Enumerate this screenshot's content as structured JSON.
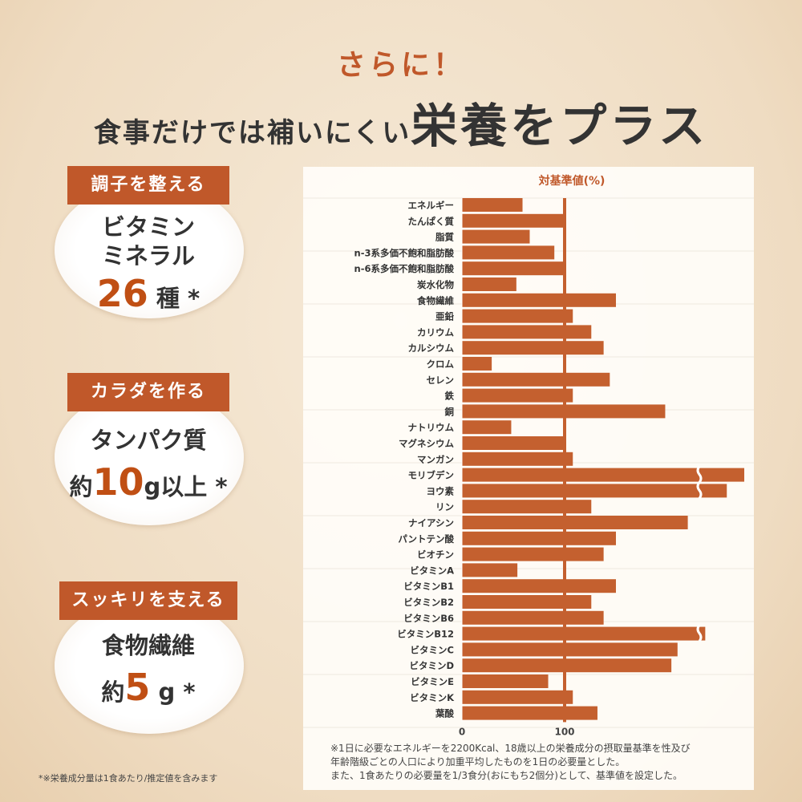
{
  "header": {
    "lead": "さらに！",
    "title_small": "食事だけでは補いにくい",
    "title_big": "栄養をプラス"
  },
  "badges": [
    {
      "tag": "調子を整える",
      "line1": "ビタミン",
      "line2": "ミネラル",
      "number": "26",
      "unit": "種",
      "mark": "*"
    },
    {
      "tag": "カラダを作る",
      "line1": "タンパク質",
      "prefix": "約",
      "number": "10",
      "unit": "g以上",
      "mark": "*"
    },
    {
      "tag": "スッキリを支える",
      "line1": "食物繊維",
      "prefix": "約",
      "number": "5",
      "unit": "g",
      "mark": "*"
    }
  ],
  "footnote": "*※栄養成分量は1食あたり/推定値を含みます",
  "chart_note": [
    "※1日に必要なエネルギーを2200Kcal、18歳以上の栄養成分の摂取量基準を性及び",
    "年齢階級ごとの人口により加重平均したものを1日の必要量とした。",
    "また、1食あたりの必要量を1/3食分(おにもち2個分)として、基準値を設定した。"
  ],
  "colors": {
    "accent": "#c0582a",
    "bar": "#c4602f",
    "text": "#333333"
  },
  "chart_data": {
    "type": "bar",
    "orientation": "horizontal",
    "title": "対基準値(%)",
    "xticks": [
      0,
      100
    ],
    "reference_line": 100,
    "categories": [
      "エネルギー",
      "たんぱく質",
      "脂質",
      "n-3系多価不飽和脂肪酸",
      "n-6系多価不飽和脂肪酸",
      "炭水化物",
      "食物繊維",
      "亜鉛",
      "カリウム",
      "カルシウム",
      "クロム",
      "セレン",
      "鉄",
      "銅",
      "ナトリウム",
      "マグネシウム",
      "マンガン",
      "モリブデン",
      "ヨウ素",
      "リン",
      "ナイアシン",
      "パントテン酸",
      "ビオチン",
      "ビタミンA",
      "ビタミンB1",
      "ビタミンB2",
      "ビタミンB6",
      "ビタミンB12",
      "ビタミンC",
      "ビタミンD",
      "ビタミンE",
      "ビタミンK",
      "葉酸"
    ],
    "values": [
      59,
      101,
      66,
      90,
      101,
      53,
      150,
      108,
      126,
      138,
      29,
      144,
      108,
      198,
      48,
      101,
      108,
      275,
      258,
      126,
      220,
      150,
      138,
      54,
      150,
      126,
      138,
      237,
      210,
      204,
      84,
      108,
      132
    ],
    "axis_break": [
      "モリブデン",
      "ヨウ素",
      "ビタミンB12"
    ]
  }
}
